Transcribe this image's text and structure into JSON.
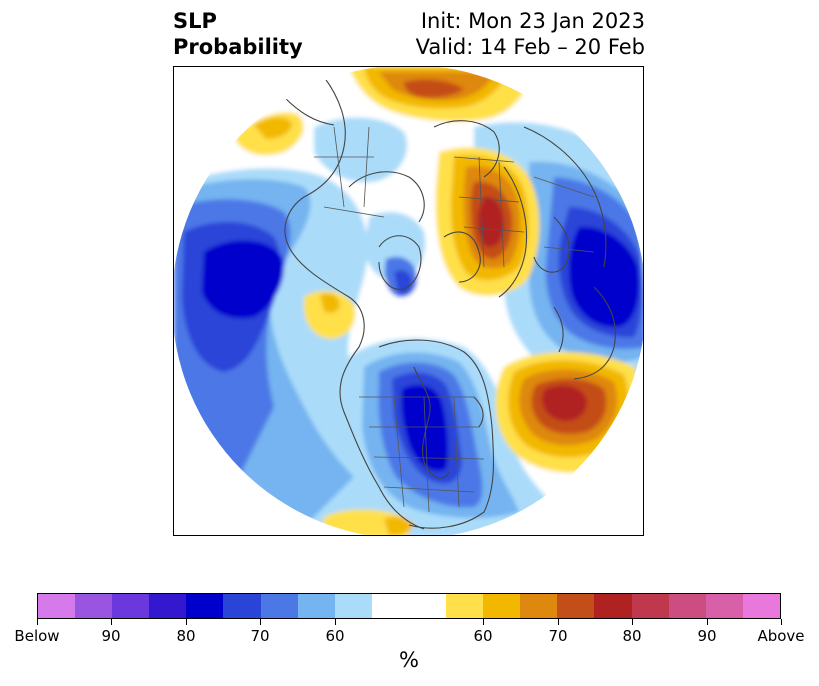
{
  "title": {
    "left_line1": "SLP",
    "left_line2": "Probability",
    "right_line1": "Init: Mon 23 Jan 2023",
    "right_line2": "Valid: 14 Feb – 20 Feb"
  },
  "map": {
    "projection": "north-polar-stereographic",
    "below_colors": [
      "#aadcfa",
      "#74b4f0",
      "#4c78e6",
      "#2a44d8",
      "#0000cc",
      "#3418d0"
    ],
    "above_colors": [
      "#ffe04a",
      "#f2b800",
      "#de8810",
      "#c44e18",
      "#b02222"
    ],
    "border_color": "#444444"
  },
  "colorbar": {
    "unit": "%",
    "ticks": [
      {
        "label": "Below"
      },
      {
        "label": "90"
      },
      {
        "label": "80"
      },
      {
        "label": "70"
      },
      {
        "label": "60"
      },
      {
        "label": "60"
      },
      {
        "label": "70"
      },
      {
        "label": "80"
      },
      {
        "label": "90"
      },
      {
        "label": "Above"
      }
    ],
    "colors": [
      "#d679ea",
      "#9a55e0",
      "#6a38dc",
      "#3418d0",
      "#0000cc",
      "#2a44d8",
      "#4c78e6",
      "#74b4f0",
      "#aadcfa",
      "#ffffff",
      "#ffe04a",
      "#f2b800",
      "#de8810",
      "#c44e18",
      "#b02222",
      "#c0384e",
      "#cc4e80",
      "#d860a8",
      "#e878dc"
    ]
  }
}
